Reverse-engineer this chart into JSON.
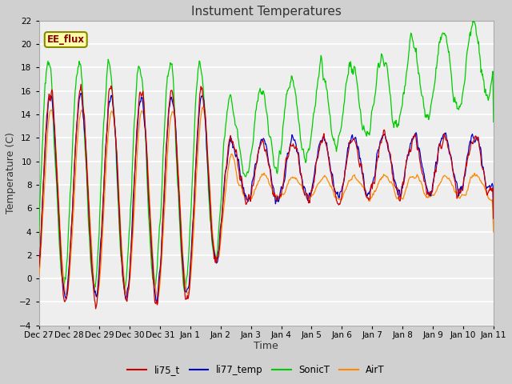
{
  "title": "Instument Temperatures",
  "xlabel": "Time",
  "ylabel": "Temperature (C)",
  "ylim": [
    -4,
    22
  ],
  "yticks": [
    -4,
    -2,
    0,
    2,
    4,
    6,
    8,
    10,
    12,
    14,
    16,
    18,
    20,
    22
  ],
  "xtick_labels": [
    "Dec 27",
    "Dec 28",
    "Dec 29",
    "Dec 30",
    "Dec 31",
    "Jan 1",
    "Jan 2",
    "Jan 3",
    "Jan 4",
    "Jan 5",
    "Jan 6",
    "Jan 7",
    "Jan 8",
    "Jan 9",
    "Jan 10",
    "Jan 11"
  ],
  "series_colors": {
    "li75_t": "#cc0000",
    "li77_temp": "#0000cc",
    "SonicT": "#00cc00",
    "AirT": "#ff8800"
  },
  "legend_label": "EE_flux",
  "legend_box_color": "#ffffaa",
  "legend_box_border": "#888800",
  "fig_bg_color": "#d0d0d0",
  "plot_bg_color": "#eeeeee",
  "grid_color": "#ffffff",
  "title_color": "#333333",
  "axis_label_color": "#333333",
  "num_points": 800
}
